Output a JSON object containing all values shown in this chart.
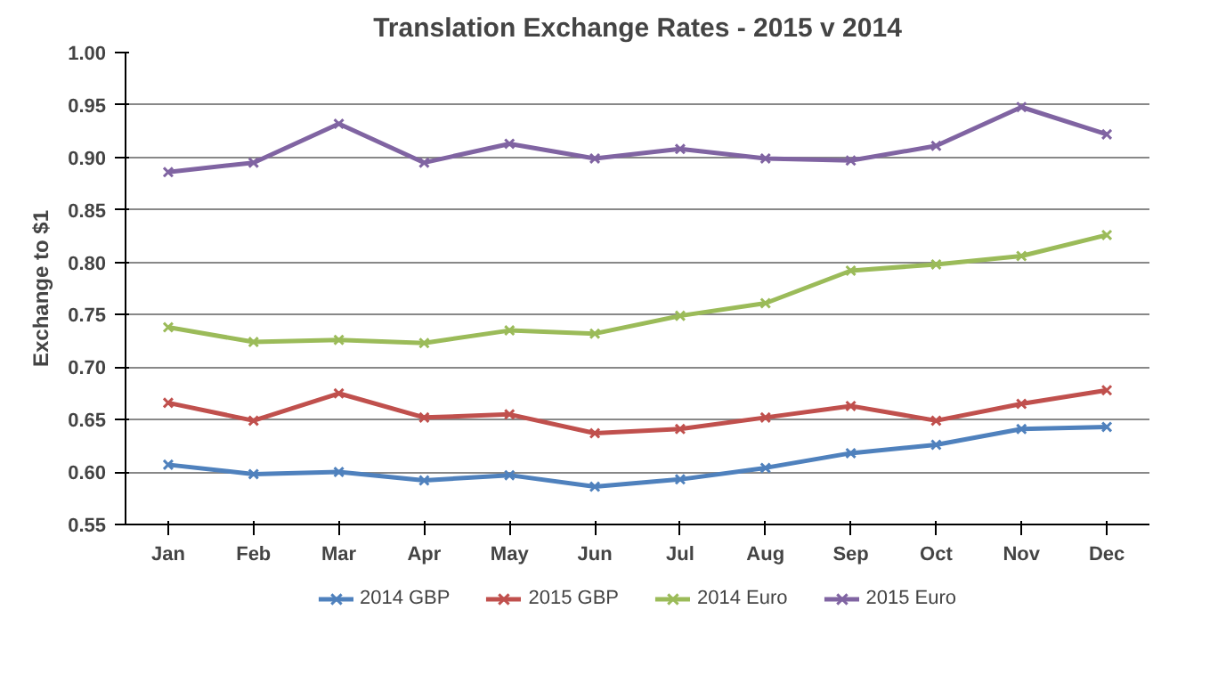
{
  "chart_data": {
    "type": "line",
    "title": "Translation Exchange Rates - 2015 v 2014",
    "ylabel": "Exchange to $1",
    "categories": [
      "Jan",
      "Feb",
      "Mar",
      "Apr",
      "May",
      "Jun",
      "Jul",
      "Aug",
      "Sep",
      "Oct",
      "Nov",
      "Dec"
    ],
    "series": [
      {
        "name": "2014 GBP",
        "color": "#4f81bd",
        "values": [
          0.607,
          0.598,
          0.6,
          0.592,
          0.597,
          0.586,
          0.593,
          0.604,
          0.618,
          0.626,
          0.641,
          0.643
        ]
      },
      {
        "name": "2015 GBP",
        "color": "#c0504d",
        "values": [
          0.666,
          0.649,
          0.675,
          0.652,
          0.655,
          0.637,
          0.641,
          0.652,
          0.663,
          0.649,
          0.665,
          0.678
        ]
      },
      {
        "name": "2014 Euro",
        "color": "#9bbb59",
        "values": [
          0.738,
          0.724,
          0.726,
          0.723,
          0.735,
          0.732,
          0.749,
          0.761,
          0.792,
          0.798,
          0.806,
          0.826
        ]
      },
      {
        "name": "2015 Euro",
        "color": "#8064a2",
        "values": [
          0.886,
          0.895,
          0.932,
          0.895,
          0.913,
          0.899,
          0.908,
          0.899,
          0.897,
          0.911,
          0.948,
          0.922
        ]
      }
    ],
    "ylim": [
      0.55,
      1.0
    ],
    "yticks": [
      {
        "value": 0.55,
        "label": "0.55"
      },
      {
        "value": 0.6,
        "label": "0.60"
      },
      {
        "value": 0.65,
        "label": "0.65"
      },
      {
        "value": 0.7,
        "label": "0.70"
      },
      {
        "value": 0.75,
        "label": "0.75"
      },
      {
        "value": 0.8,
        "label": "0.80"
      },
      {
        "value": 0.85,
        "label": "0.85"
      },
      {
        "value": 0.9,
        "label": "0.90"
      },
      {
        "value": 0.95,
        "label": "0.95"
      },
      {
        "value": 1.0,
        "label": "1.00"
      }
    ],
    "grid": "y",
    "legend": "bottom",
    "marker": "cross",
    "line_style": "solid"
  }
}
